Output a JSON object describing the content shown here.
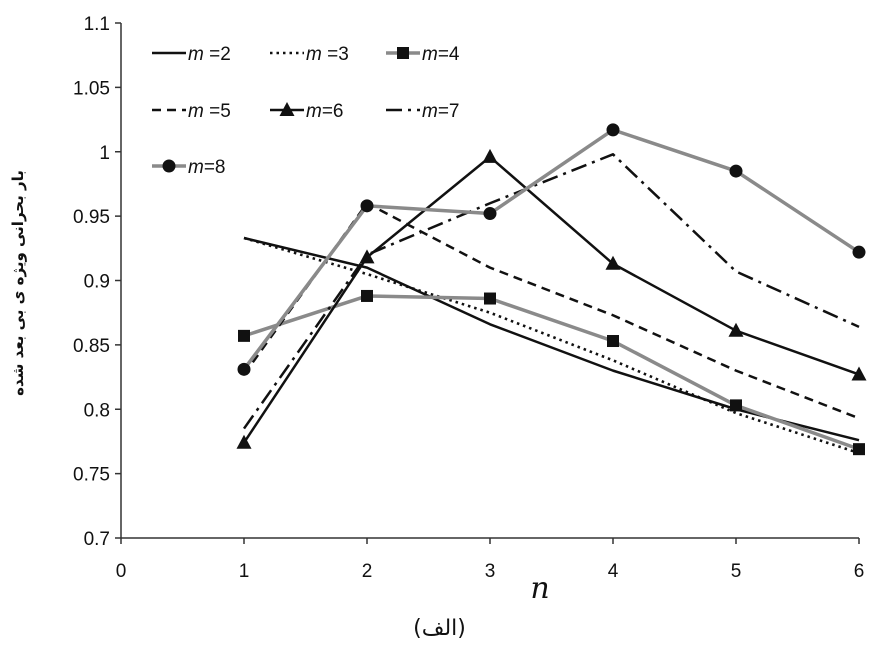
{
  "chart_data": {
    "type": "line",
    "title": "",
    "xlabel": "n",
    "ylabel": "بار بحرانی ویژه ی بی بعد شده",
    "xlim": [
      0,
      6
    ],
    "ylim": [
      0.7,
      1.1
    ],
    "x_ticks": [
      "0",
      "1",
      "2",
      "3",
      "4",
      "5",
      "6"
    ],
    "y_ticks": [
      "0.7",
      "0.75",
      "0.8",
      "0.85",
      "0.9",
      "0.95",
      "1",
      "1.05",
      "1.1"
    ],
    "grid": false,
    "legend": "top-left",
    "x": [
      1,
      2,
      3,
      4,
      5,
      6
    ],
    "series": [
      {
        "name": "m =2",
        "style": "solid-black",
        "values": [
          0.933,
          0.91,
          0.866,
          0.83,
          0.8,
          0.776
        ]
      },
      {
        "name": "m =3",
        "style": "dotted-black",
        "values": [
          0.933,
          0.905,
          0.875,
          0.838,
          0.797,
          0.766
        ]
      },
      {
        "name": "m=4",
        "style": "gray-square",
        "values": [
          0.857,
          0.888,
          0.886,
          0.853,
          0.803,
          0.769
        ]
      },
      {
        "name": "m =5",
        "style": "dashed-black",
        "values": [
          0.827,
          0.96,
          0.91,
          0.873,
          0.83,
          0.793
        ]
      },
      {
        "name": "m=6",
        "style": "black-triangle",
        "values": [
          0.774,
          0.918,
          0.996,
          0.913,
          0.861,
          0.827
        ]
      },
      {
        "name": "m=7",
        "style": "dashdot-black",
        "values": [
          0.785,
          0.92,
          0.96,
          0.998,
          0.907,
          0.864
        ]
      },
      {
        "name": "m=8",
        "style": "gray-circle",
        "values": [
          0.831,
          0.958,
          0.952,
          1.017,
          0.985,
          0.922
        ]
      }
    ]
  },
  "caption": "(الف)",
  "colors": {
    "black": "#111111",
    "gray": "#8a8a8a"
  }
}
